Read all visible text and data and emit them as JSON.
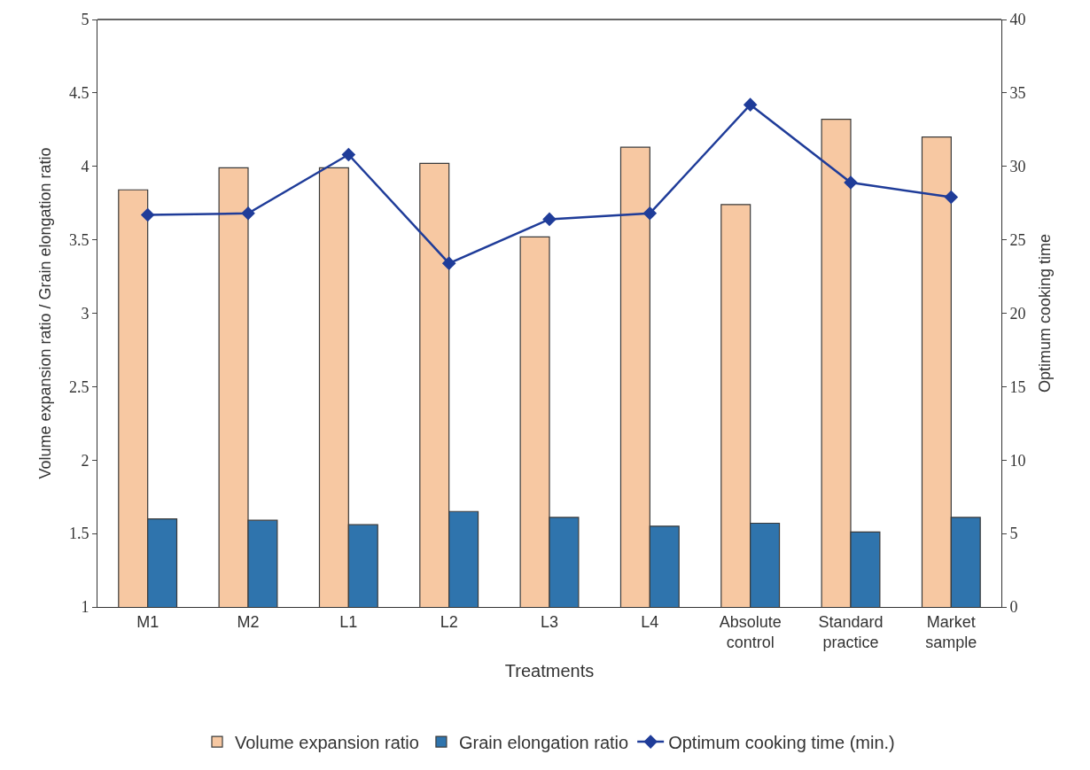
{
  "chart_data": {
    "type": "bar",
    "xlabel": "Treatments",
    "ylabel": "Volume expansion ratio / Grain elongation ratio",
    "y2label": "Optimum cooking time",
    "categories": [
      "M1",
      "M2",
      "L1",
      "L2",
      "L3",
      "L4",
      "Absolute control",
      "Standard practice",
      "Market sample"
    ],
    "series": [
      {
        "name": "Volume expansion ratio",
        "color": "#f7c8a2",
        "values": [
          3.84,
          3.99,
          3.99,
          4.02,
          3.52,
          4.13,
          3.74,
          4.32,
          4.2
        ]
      },
      {
        "name": "Grain elongation ratio",
        "color": "#2f74ad",
        "values": [
          1.6,
          1.59,
          1.56,
          1.65,
          1.61,
          1.55,
          1.57,
          1.51,
          1.61
        ]
      },
      {
        "name": "Optimum cooking time (min.)",
        "type": "line",
        "axis": "y2",
        "color": "#1f3c99",
        "marker": "diamond",
        "values": [
          26.7,
          26.8,
          30.8,
          23.4,
          26.4,
          26.8,
          34.2,
          28.9,
          27.9
        ]
      }
    ],
    "ylim": [
      1,
      5
    ],
    "yticks": [
      1,
      1.5,
      2,
      2.5,
      3,
      3.5,
      4,
      4.5,
      5
    ],
    "y2lim": [
      0,
      40
    ],
    "y2ticks": [
      0,
      5,
      10,
      15,
      20,
      25,
      30,
      35,
      40
    ],
    "legend": "bottom"
  }
}
